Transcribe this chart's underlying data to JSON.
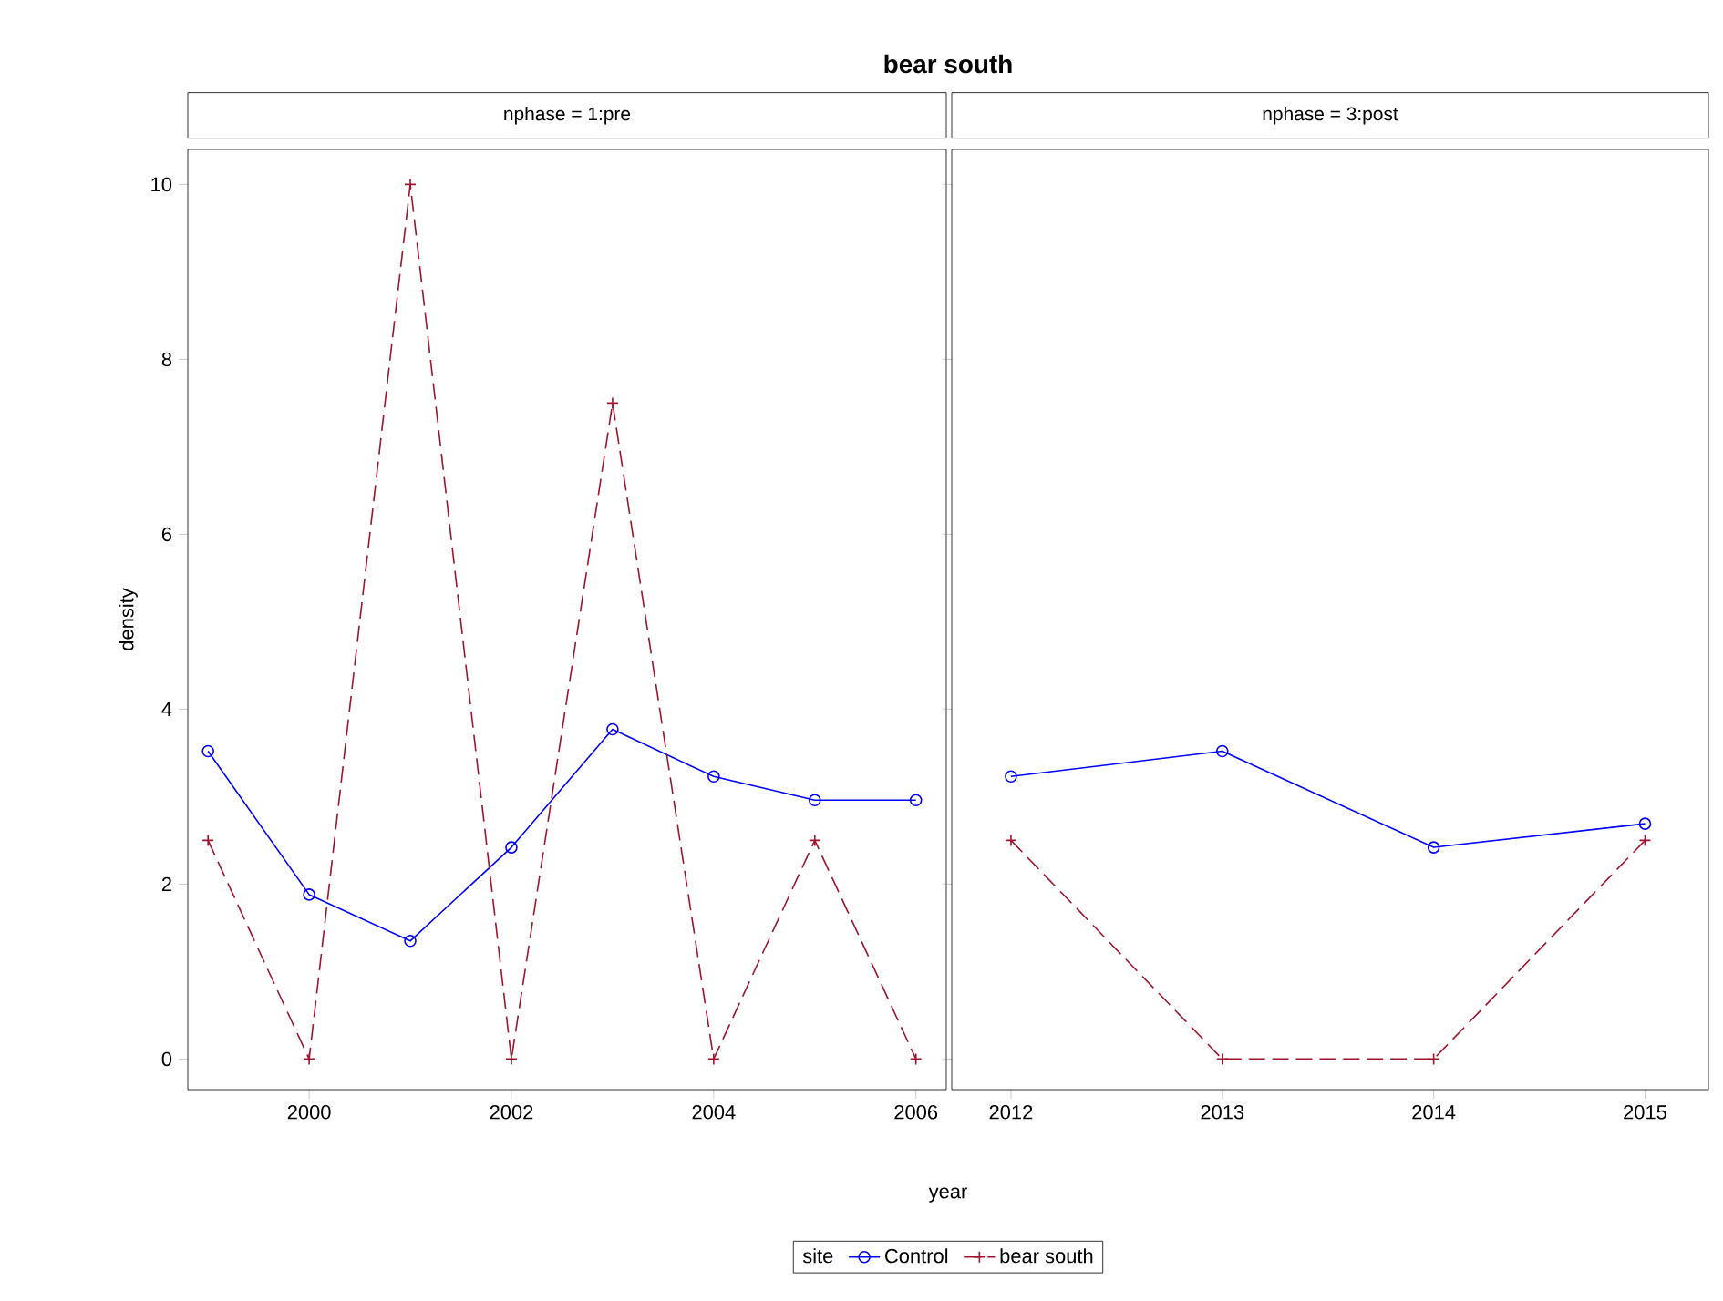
{
  "chart_data": [
    {
      "type": "line",
      "title": "bear south",
      "subtitle": "nphase = 1:pre",
      "xlabel": "year",
      "ylabel": "density",
      "legend_title": "site",
      "legend": "bottom",
      "x": [
        1999,
        2000,
        2001,
        2002,
        2003,
        2004,
        2005,
        2006
      ],
      "xlim": [
        1998.8,
        2006.3
      ],
      "xticks": [
        2000,
        2002,
        2004,
        2006
      ],
      "ylim": [
        -0.35,
        10.4
      ],
      "yticks": [
        0,
        2,
        4,
        6,
        8,
        10
      ],
      "grid": false,
      "series": [
        {
          "name": "Control",
          "color": "#0000ff",
          "marker": "circle",
          "line_style": "solid",
          "values": [
            3.52,
            1.88,
            1.35,
            2.42,
            3.77,
            3.23,
            2.96,
            2.96
          ]
        },
        {
          "name": "bear south",
          "color": "#a0142d",
          "marker": "cross",
          "line_style": "dashed",
          "values": [
            2.5,
            0,
            10,
            0,
            7.5,
            0,
            2.5,
            0
          ]
        }
      ]
    },
    {
      "type": "line",
      "subtitle": "nphase = 3:post",
      "x": [
        2012,
        2013,
        2014,
        2015
      ],
      "xlim": [
        2011.72,
        2015.3
      ],
      "xticks": [
        2012,
        2013,
        2014,
        2015
      ],
      "ylim": [
        -0.35,
        10.4
      ],
      "yticks": [
        0,
        2,
        4,
        6,
        8,
        10
      ],
      "tick_labels": "x",
      "grid": false,
      "series": [
        {
          "color": "#0000ff",
          "marker": "circle",
          "line_style": "solid",
          "values": [
            3.23,
            3.52,
            2.42,
            2.69
          ]
        },
        {
          "color": "#a0142d",
          "marker": "cross",
          "line_style": "dashed",
          "values": [
            2.5,
            0,
            0,
            2.5
          ]
        }
      ]
    }
  ]
}
